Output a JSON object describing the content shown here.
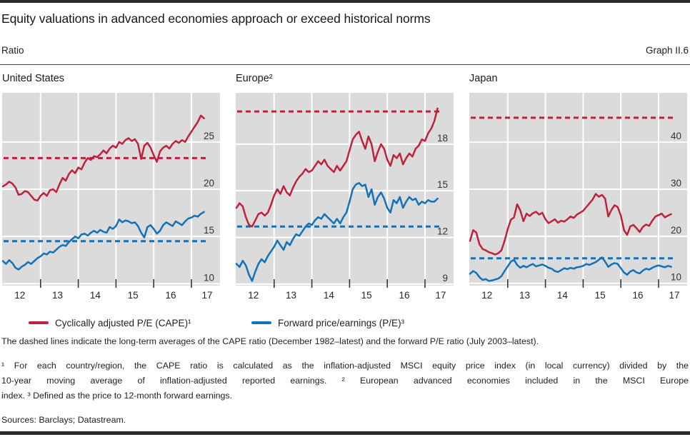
{
  "header": {
    "title": "Equity valuations in advanced economies approach or exceed historical norms",
    "unit_label": "Ratio",
    "graph_label": "Graph II.6"
  },
  "notes": {
    "dashed_lines": "The dashed lines indicate the long-term averages of the CAPE ratio (December 1982–latest) and the forward P/E ratio (July 2003–latest)."
  },
  "footnotes": {
    "line1": "¹  For each country/region, the CAPE ratio is calculated as the inflation-adjusted MSCI equity price index (in local currency) divided by the",
    "line2": "10-year moving average of inflation-adjusted reported earnings.  ²  European advanced economies included in the MSCI Europe",
    "line3": "index.  ³  Defined as the price to 12-month forward earnings."
  },
  "sources": "Sources: Barclays; Datastream.",
  "chart_data": {
    "type": "line",
    "x_axis": {
      "start": "Jan 2012",
      "end": "May 2017",
      "frequency": "monthly",
      "year_labels": [
        "12",
        "13",
        "14",
        "15",
        "16",
        "17"
      ],
      "gridlines_at": [
        "2013",
        "2014",
        "2015",
        "2016",
        "2017"
      ]
    },
    "colors": {
      "cape": "#c0203c",
      "pe": "#1272b9",
      "plot_bg": "#dbdbdb",
      "gridline": "#ffffff",
      "tick": "#333333"
    },
    "legend_labels": [
      "Cyclically adjusted P/E (CAPE)¹",
      "Forward price/earnings (P/E)³"
    ],
    "legend_note": "dashed lines = long-term averages",
    "panels": [
      {
        "title": "United States",
        "ylim": [
          9.8,
          30.2
        ],
        "y_ticks": [
          25,
          20,
          15,
          10
        ],
        "cape_avg": 23.3,
        "pe_avg": 14.5,
        "series": {
          "cape": [
            20.3,
            20.5,
            20.8,
            20.6,
            20.2,
            19.4,
            19.5,
            19.8,
            19.7,
            19.3,
            18.9,
            18.8,
            19.3,
            19.6,
            19.3,
            19.9,
            20.0,
            19.7,
            20.5,
            21.2,
            20.9,
            21.6,
            22.0,
            21.7,
            22.3,
            22.1,
            22.8,
            23.3,
            23.1,
            23.5,
            23.4,
            23.7,
            24.1,
            23.8,
            24.3,
            24.6,
            24.4,
            25.0,
            24.8,
            25.2,
            25.4,
            25.1,
            25.3,
            24.8,
            23.2,
            24.6,
            24.9,
            24.4,
            23.6,
            22.9,
            24.0,
            24.4,
            24.6,
            24.3,
            24.8,
            25.1,
            24.9,
            25.2,
            25.0,
            25.6,
            26.1,
            26.6,
            27.1,
            27.8,
            27.5
          ],
          "pe": [
            12.4,
            12.1,
            12.5,
            12.2,
            11.7,
            11.5,
            11.8,
            12.0,
            12.3,
            12.1,
            12.4,
            12.7,
            12.9,
            13.2,
            13.1,
            13.4,
            13.3,
            13.6,
            13.9,
            14.1,
            14.0,
            14.4,
            14.7,
            15.0,
            14.8,
            15.2,
            15.3,
            15.1,
            15.4,
            15.6,
            15.4,
            15.7,
            15.5,
            15.4,
            16.0,
            15.8,
            16.1,
            16.8,
            16.5,
            16.7,
            16.6,
            16.4,
            16.5,
            16.1,
            15.4,
            14.9,
            16.0,
            16.2,
            15.8,
            15.3,
            15.6,
            16.2,
            16.5,
            16.3,
            16.1,
            16.6,
            16.4,
            16.2,
            16.6,
            16.9,
            17.0,
            17.2,
            17.1,
            17.4,
            17.6
          ]
        }
      },
      {
        "title": "Europe²",
        "ylim": [
          8.9,
          21.3
        ],
        "y_ticks": [
          18,
          15,
          12,
          9
        ],
        "cape_avg": 20.1,
        "pe_avg": 12.7,
        "series": {
          "cape": [
            13.9,
            14.2,
            14.0,
            13.3,
            12.8,
            12.7,
            13.1,
            13.5,
            13.6,
            13.4,
            13.6,
            14.1,
            14.7,
            15.1,
            14.8,
            15.3,
            14.9,
            14.7,
            15.2,
            15.6,
            15.9,
            16.1,
            16.4,
            16.2,
            16.3,
            16.6,
            16.9,
            16.7,
            17.0,
            16.6,
            16.4,
            16.2,
            16.6,
            16.3,
            16.6,
            16.9,
            17.6,
            18.3,
            18.6,
            18.8,
            18.2,
            17.7,
            18.5,
            18.0,
            16.9,
            17.5,
            18.0,
            17.7,
            17.0,
            16.6,
            17.3,
            17.1,
            17.4,
            16.7,
            17.1,
            17.4,
            17.2,
            17.7,
            17.9,
            18.3,
            18.2,
            18.7,
            19.0,
            19.5,
            20.3
          ],
          "pe": [
            10.3,
            10.1,
            10.5,
            10.2,
            9.6,
            9.2,
            9.8,
            10.3,
            10.6,
            10.4,
            10.8,
            11.1,
            11.4,
            11.8,
            11.5,
            11.2,
            11.7,
            11.5,
            11.9,
            12.2,
            12.1,
            12.4,
            12.7,
            12.9,
            12.8,
            13.1,
            13.3,
            13.2,
            13.5,
            13.3,
            13.1,
            12.9,
            13.2,
            12.9,
            13.3,
            13.6,
            14.3,
            15.1,
            15.4,
            15.5,
            15.3,
            15.4,
            14.6,
            15.1,
            14.1,
            14.6,
            14.9,
            14.5,
            13.9,
            13.6,
            14.4,
            14.2,
            14.6,
            13.9,
            14.3,
            14.6,
            14.4,
            14.5,
            14.1,
            14.3,
            14.2,
            14.4,
            14.3,
            14.3,
            14.5
          ]
        }
      },
      {
        "title": "Japan",
        "ylim": [
          9.5,
          50.5
        ],
        "y_ticks": [
          40,
          30,
          20,
          10
        ],
        "cape_avg": 45.2,
        "pe_avg": 15.3,
        "series": {
          "cape": [
            19.0,
            21.3,
            20.8,
            18.3,
            17.3,
            17.0,
            16.6,
            16.4,
            16.1,
            16.4,
            17.0,
            19.0,
            21.5,
            23.5,
            24.0,
            26.8,
            25.5,
            23.2,
            24.8,
            24.3,
            24.9,
            25.2,
            24.6,
            25.0,
            23.6,
            22.8,
            23.2,
            23.6,
            22.9,
            23.3,
            23.1,
            23.6,
            24.2,
            23.9,
            24.6,
            25.0,
            25.4,
            26.2,
            27.0,
            27.8,
            29.0,
            28.4,
            28.8,
            28.0,
            24.2,
            25.6,
            26.6,
            26.2,
            24.4,
            21.3,
            20.3,
            22.1,
            22.4,
            21.7,
            20.9,
            22.0,
            22.5,
            22.2,
            23.3,
            24.2,
            24.5,
            24.8,
            24.0,
            24.4,
            24.7
          ],
          "pe": [
            12.0,
            12.6,
            12.2,
            11.3,
            10.7,
            10.9,
            10.5,
            10.6,
            10.8,
            11.0,
            11.5,
            12.6,
            13.6,
            14.6,
            15.0,
            13.9,
            13.3,
            13.7,
            13.4,
            13.8,
            14.1,
            13.6,
            13.8,
            14.0,
            13.7,
            13.3,
            13.1,
            12.6,
            12.4,
            12.8,
            13.2,
            13.0,
            13.3,
            13.1,
            13.4,
            13.5,
            13.7,
            14.1,
            13.9,
            14.2,
            14.5,
            15.0,
            15.5,
            14.6,
            13.5,
            14.0,
            14.3,
            14.1,
            13.2,
            12.3,
            11.8,
            12.5,
            12.8,
            12.3,
            12.1,
            12.7,
            13.1,
            12.9,
            13.3,
            13.6,
            13.8,
            13.6,
            13.4,
            13.7,
            13.5
          ]
        }
      }
    ]
  }
}
